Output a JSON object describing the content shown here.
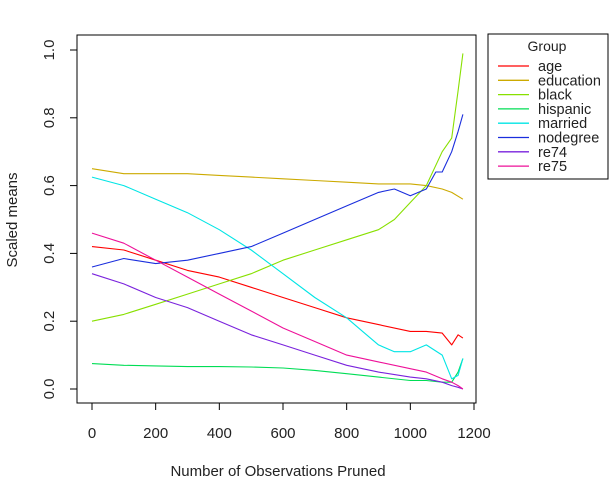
{
  "chart_data": {
    "type": "line",
    "xlabel": "Number of Observations Pruned",
    "ylabel": "Scaled means",
    "xlim": [
      0,
      1200
    ],
    "ylim": [
      0,
      1.0
    ],
    "x_ticks": [
      0,
      200,
      400,
      600,
      800,
      1000,
      1200
    ],
    "x_tick_labels": [
      "0",
      "200",
      "400",
      "600",
      "800",
      "1000",
      "1200"
    ],
    "y_ticks": [
      0.0,
      0.2,
      0.4,
      0.6,
      0.8,
      1.0
    ],
    "y_tick_labels": [
      "0.0",
      "0.2",
      "0.4",
      "0.6",
      "0.8",
      "1.0"
    ],
    "grid": false,
    "legend_title": "Group",
    "legend_position": "outside-right",
    "series": [
      {
        "name": "age",
        "color": "#ff0000",
        "x": [
          0,
          100,
          200,
          300,
          400,
          500,
          600,
          700,
          800,
          900,
          1000,
          1050,
          1100,
          1130,
          1150,
          1165
        ],
        "y": [
          0.42,
          0.41,
          0.38,
          0.35,
          0.33,
          0.3,
          0.27,
          0.24,
          0.21,
          0.19,
          0.17,
          0.17,
          0.165,
          0.13,
          0.16,
          0.15
        ]
      },
      {
        "name": "education",
        "color": "#ccaa00",
        "x": [
          0,
          100,
          200,
          300,
          400,
          500,
          600,
          700,
          800,
          900,
          1000,
          1050,
          1100,
          1130,
          1165
        ],
        "y": [
          0.65,
          0.635,
          0.635,
          0.635,
          0.63,
          0.625,
          0.62,
          0.615,
          0.61,
          0.605,
          0.605,
          0.6,
          0.59,
          0.58,
          0.56
        ]
      },
      {
        "name": "black",
        "color": "#88e000",
        "x": [
          0,
          100,
          200,
          300,
          400,
          500,
          600,
          700,
          800,
          900,
          950,
          1000,
          1050,
          1100,
          1130,
          1150,
          1165
        ],
        "y": [
          0.2,
          0.22,
          0.25,
          0.28,
          0.31,
          0.34,
          0.38,
          0.41,
          0.44,
          0.47,
          0.5,
          0.55,
          0.6,
          0.7,
          0.74,
          0.88,
          0.99
        ]
      },
      {
        "name": "hispanic",
        "color": "#00dd55",
        "x": [
          0,
          100,
          200,
          300,
          400,
          500,
          600,
          700,
          800,
          900,
          1000,
          1050,
          1100,
          1130,
          1150,
          1165
        ],
        "y": [
          0.075,
          0.07,
          0.068,
          0.066,
          0.066,
          0.065,
          0.062,
          0.055,
          0.045,
          0.035,
          0.025,
          0.025,
          0.02,
          0.02,
          0.05,
          0.09
        ]
      },
      {
        "name": "married",
        "color": "#00e5e5",
        "x": [
          0,
          100,
          200,
          300,
          400,
          500,
          600,
          700,
          800,
          850,
          900,
          950,
          1000,
          1050,
          1100,
          1130,
          1150,
          1165
        ],
        "y": [
          0.625,
          0.6,
          0.56,
          0.52,
          0.47,
          0.41,
          0.34,
          0.27,
          0.21,
          0.17,
          0.13,
          0.11,
          0.11,
          0.13,
          0.1,
          0.03,
          0.04,
          0.09
        ]
      },
      {
        "name": "nodegree",
        "color": "#1a2edd",
        "x": [
          0,
          100,
          200,
          300,
          400,
          500,
          600,
          700,
          800,
          900,
          950,
          1000,
          1050,
          1080,
          1100,
          1130,
          1150,
          1165
        ],
        "y": [
          0.36,
          0.385,
          0.37,
          0.38,
          0.4,
          0.42,
          0.46,
          0.5,
          0.54,
          0.58,
          0.59,
          0.57,
          0.59,
          0.64,
          0.64,
          0.7,
          0.76,
          0.81
        ]
      },
      {
        "name": "re74",
        "color": "#7a22dd",
        "x": [
          0,
          100,
          200,
          300,
          400,
          500,
          600,
          700,
          800,
          900,
          1000,
          1050,
          1100,
          1130,
          1150,
          1165
        ],
        "y": [
          0.34,
          0.31,
          0.27,
          0.24,
          0.2,
          0.16,
          0.13,
          0.1,
          0.07,
          0.05,
          0.035,
          0.03,
          0.02,
          0.01,
          0.005,
          0.0
        ]
      },
      {
        "name": "re75",
        "color": "#ee1199",
        "x": [
          0,
          100,
          200,
          300,
          400,
          500,
          600,
          700,
          800,
          900,
          1000,
          1050,
          1100,
          1130,
          1150,
          1165
        ],
        "y": [
          0.46,
          0.43,
          0.38,
          0.33,
          0.28,
          0.23,
          0.18,
          0.14,
          0.1,
          0.08,
          0.06,
          0.05,
          0.03,
          0.02,
          0.01,
          0.0
        ]
      }
    ]
  }
}
